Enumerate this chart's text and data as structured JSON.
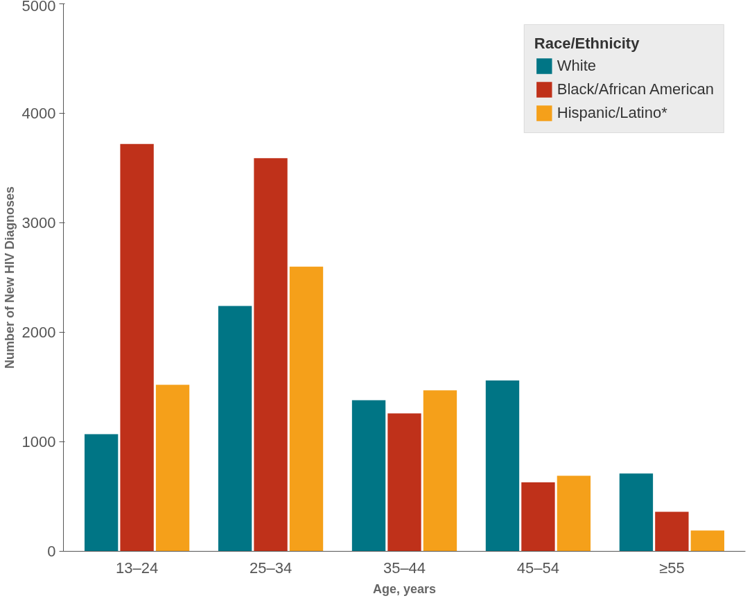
{
  "chart_data": {
    "type": "bar",
    "xlabel": "Age, years",
    "ylabel": "Number of New HIV Diagnoses",
    "legend_title": "Race/Ethnicity",
    "categories": [
      "13–24",
      "25–34",
      "35–44",
      "45–54",
      "≥55"
    ],
    "series": [
      {
        "name": "White",
        "color": "#007585",
        "values": [
          1070,
          2240,
          1380,
          1560,
          710
        ]
      },
      {
        "name": "Black/African American",
        "color": "#bf311a",
        "values": [
          3720,
          3590,
          1260,
          630,
          360
        ]
      },
      {
        "name": "Hispanic/Latino*",
        "color": "#f5a01a",
        "values": [
          1520,
          2600,
          1470,
          690,
          190
        ]
      }
    ],
    "ylim": [
      0,
      5000
    ],
    "yticks": [
      0,
      1000,
      2000,
      3000,
      4000,
      5000
    ],
    "grid": false,
    "legend": "top right"
  }
}
